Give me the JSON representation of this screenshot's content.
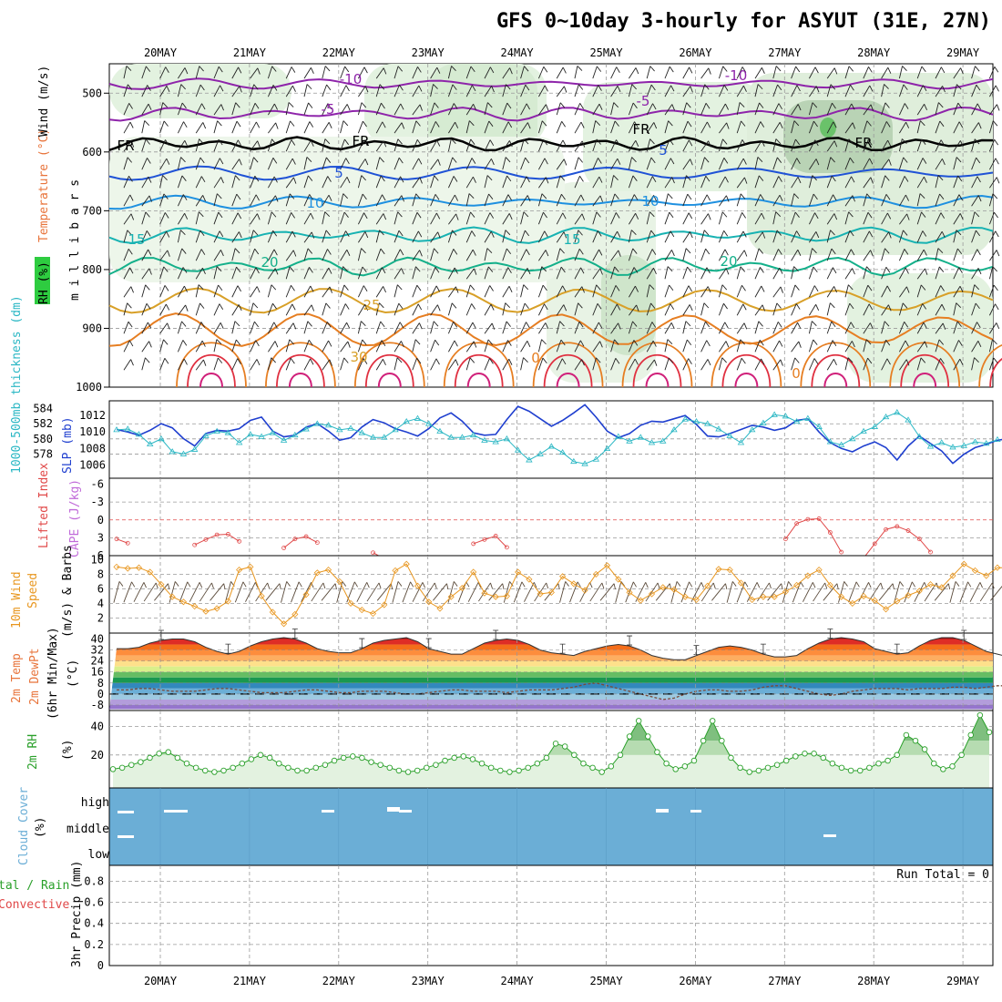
{
  "title": "GFS 0~10day 3-hourly for ASYUT (31E, 27N)",
  "dates": [
    "20MAY",
    "21MAY",
    "22MAY",
    "23MAY",
    "24MAY",
    "25MAY",
    "26MAY",
    "27MAY",
    "28MAY",
    "29MAY"
  ],
  "colors": {
    "wind_label": "#000000",
    "temperature_label": "#e8743b",
    "rh_box": "#2ecc40",
    "slp": "#1f3fcf",
    "thickness": "#2ab7c4",
    "lifted": "#e04848",
    "cape": "#c06ad9",
    "wind10": "#e8961e",
    "speed": "#e8961e",
    "rh2m": "#2aa02a",
    "cloud": "#6baed6",
    "precip_total": "#2aa02a",
    "precip_conv": "#e04848"
  },
  "panels": {
    "upper": {
      "ylabels": [
        "Wind (m/s)",
        "Temperature (°C)",
        "RH (%)",
        "m i l l i b a r s"
      ],
      "yticks": [
        "500",
        "600",
        "700",
        "800",
        "900",
        "1000"
      ]
    },
    "slp": {
      "ylabel_thick": "1000-500mb thickness (dm)",
      "ylabel_slp": "SLP (mb)",
      "left_ticks": [
        "584",
        "582",
        "580",
        "578"
      ],
      "right_ticks": [
        "1012",
        "1010",
        "1008",
        "1006"
      ]
    },
    "li": {
      "ylabel_li": "Lifted Index",
      "ylabel_cape": "CAPE (J/kg)",
      "yticks": [
        "-6",
        "-3",
        "0",
        "3",
        "6"
      ]
    },
    "wind10": {
      "ylabel": "10m Wind",
      "ylabel2": "Speed",
      "ylabel3": "(m/s) & Barbs",
      "yticks": [
        "10",
        "8",
        "6",
        "4",
        "2"
      ]
    },
    "temp2m": {
      "ylabel1": "2m Temp",
      "ylabel2": "2m DewPt",
      "ylabel3": "(6hr Min/Max)",
      "unit": "(°C)",
      "yticks": [
        "40",
        "32",
        "24",
        "16",
        "8",
        "0",
        "-8"
      ]
    },
    "rh2m": {
      "ylabel": "2m RH",
      "unit": "(%)",
      "yticks": [
        "40",
        "20"
      ]
    },
    "cloud": {
      "ylabel": "Cloud Cover",
      "unit": "(%)",
      "levels": [
        "high",
        "middle",
        "low"
      ]
    },
    "precip": {
      "ylabel1": "tal / Rain",
      "ylabel2": "Convective",
      "ylabel3": "3hr Precip (mm)",
      "yticks": [
        "0.8",
        "0.6",
        "0.4",
        "0.2",
        "0"
      ],
      "run_total": "Run Total = 0"
    }
  },
  "isotherm_labels": [
    "-10",
    "-5",
    "FR",
    "5",
    "10",
    "15",
    "20",
    "25",
    "30",
    "0"
  ],
  "chart_data": [
    {
      "type": "line",
      "name": "slp_thickness",
      "x_unit": "3-hourly steps from 19 May 12Z",
      "series": [
        {
          "name": "SLP (mb)",
          "values": [
            1010.3,
            1010.0,
            1009.6,
            1010.2,
            1011.0,
            1010.5,
            1009.2,
            1008.3,
            1009.8,
            1010.2,
            1010.1,
            1010.4,
            1011.4,
            1011.8,
            1010.1,
            1009.4,
            1009.6,
            1010.6,
            1011.0,
            1010.1,
            1009.0,
            1009.3,
            1010.6,
            1011.5,
            1011.1,
            1010.4,
            1010.0,
            1009.5,
            1010.4,
            1011.7,
            1012.3,
            1011.3,
            1009.9,
            1009.6,
            1009.7,
            1011.5,
            1013.1,
            1012.5,
            1011.6,
            1010.7,
            1011.4,
            1012.3,
            1013.3,
            1011.8,
            1010.1,
            1009.3,
            1009.8,
            1010.8,
            1011.3,
            1011.2,
            1011.6,
            1012.0,
            1010.9,
            1009.5,
            1009.4,
            1009.8,
            1010.3,
            1010.8,
            1010.6,
            1010.2,
            1010.5,
            1011.4,
            1011.6,
            1010.0,
            1008.7,
            1008.0,
            1007.6,
            1008.3,
            1008.8,
            1008.1,
            1006.6,
            1008.3,
            1009.5,
            1008.6,
            1007.7,
            1006.2,
            1007.3,
            1008.1,
            1008.5,
            1009.0,
            1009.2
          ]
        },
        {
          "name": "Thickness (dm)",
          "values": [
            581.2,
            581.3,
            580.6,
            579.3,
            580.0,
            578.3,
            578.0,
            578.6,
            580.4,
            581.0,
            580.8,
            579.5,
            580.6,
            580.3,
            580.8,
            579.8,
            580.5,
            581.3,
            582.0,
            581.8,
            581.2,
            581.4,
            580.8,
            580.2,
            580.2,
            581.2,
            582.3,
            582.7,
            582.0,
            581.0,
            580.2,
            580.2,
            580.5,
            579.8,
            579.6,
            580.0,
            578.5,
            577.2,
            578.0,
            579.0,
            578.2,
            577.0,
            576.7,
            577.3,
            578.7,
            580.3,
            579.7,
            580.2,
            579.5,
            579.7,
            581.2,
            582.6,
            582.3,
            582.0,
            581.3,
            580.4,
            579.5,
            581.2,
            582.1,
            583.2,
            583.0,
            582.3,
            582.7,
            581.6,
            579.6,
            579.2,
            580.0,
            581.0,
            581.6,
            582.9,
            583.5,
            582.5,
            580.3,
            579.0,
            579.5,
            578.9,
            579.1,
            579.6,
            579.4,
            579.9
          ]
        }
      ]
    },
    {
      "type": "line",
      "name": "lifted_index",
      "series": [
        {
          "name": "Lifted Index",
          "values": [
            3.2,
            3.9,
            7,
            7,
            7,
            7,
            7,
            4.2,
            3.3,
            2.5,
            2.4,
            3.6,
            7,
            7,
            7,
            4.7,
            3.2,
            2.8,
            3.8,
            7,
            7,
            7,
            7,
            5.5,
            6.5,
            7,
            7,
            7,
            7,
            7,
            7,
            7,
            4.0,
            3.3,
            2.7,
            4.6,
            7,
            7,
            7,
            7,
            7,
            7,
            7,
            7,
            7,
            7,
            7,
            7,
            7,
            7,
            7,
            7,
            7,
            7,
            7,
            7,
            7,
            7,
            7,
            7,
            3.2,
            0.6,
            -0.1,
            -0.2,
            2.1,
            5.4,
            7,
            6.4,
            4.0,
            1.6,
            1.1,
            1.8,
            3.2,
            5.4,
            7,
            7,
            7,
            7,
            7,
            7,
            7
          ]
        }
      ]
    },
    {
      "type": "line",
      "name": "wind10m",
      "series": [
        {
          "name": "10m Wind Speed (m/s)",
          "values": [
            9.0,
            8.8,
            8.9,
            8.3,
            6.6,
            4.9,
            4.2,
            3.6,
            2.9,
            3.3,
            4.3,
            8.6,
            9.0,
            5.0,
            2.8,
            1.2,
            2.5,
            5.2,
            8.2,
            8.6,
            7.0,
            4.0,
            3.1,
            2.6,
            3.8,
            8.5,
            9.4,
            6.4,
            4.2,
            3.3,
            4.9,
            6.1,
            8.3,
            5.4,
            4.9,
            5.0,
            8.3,
            7.3,
            5.3,
            5.5,
            7.7,
            6.7,
            5.8,
            8.0,
            9.2,
            7.3,
            5.5,
            4.4,
            5.3,
            6.2,
            5.9,
            4.9,
            4.5,
            6.4,
            8.7,
            8.6,
            6.8,
            4.5,
            4.9,
            4.9,
            5.6,
            6.5,
            7.8,
            8.6,
            6.5,
            4.9,
            4.0,
            5.0,
            4.4,
            3.2,
            4.3,
            5.1,
            5.7,
            6.6,
            6.2,
            7.8,
            9.4,
            8.5,
            7.8,
            8.9,
            8.9
          ]
        }
      ]
    },
    {
      "type": "area",
      "name": "temp2m",
      "series": [
        {
          "name": "2m Temp (°C)",
          "values": [
            33,
            33,
            34,
            37,
            39,
            40,
            40,
            38,
            34,
            31,
            29,
            31,
            35,
            38,
            40,
            41,
            40,
            37,
            33,
            31,
            30,
            30,
            33,
            37,
            39,
            40,
            41,
            38,
            33,
            31,
            29,
            29,
            33,
            37,
            39,
            40,
            39,
            36,
            32,
            30,
            29,
            28,
            31,
            33,
            35,
            36,
            35,
            32,
            28,
            26,
            25,
            25,
            28,
            31,
            34,
            35,
            34,
            32,
            29,
            27,
            27,
            28,
            33,
            37,
            40,
            41,
            40,
            38,
            33,
            31,
            29,
            30,
            35,
            39,
            41,
            41,
            39,
            35,
            31,
            29,
            27
          ]
        },
        {
          "name": "2m DewPt (°C)",
          "values": [
            3,
            3,
            4,
            4,
            3,
            2,
            2,
            2,
            3,
            4,
            4,
            3,
            2,
            1,
            1,
            1,
            2,
            3,
            3,
            2,
            1,
            1,
            2,
            2,
            2,
            1,
            0,
            0,
            1,
            2,
            3,
            3,
            2,
            2,
            2,
            1,
            2,
            3,
            3,
            3,
            4,
            5,
            7,
            8,
            6,
            4,
            2,
            0,
            -2,
            -4,
            -3,
            0,
            2,
            3,
            3,
            2,
            2,
            3,
            5,
            6,
            6,
            4,
            2,
            0,
            -1,
            0,
            2,
            3,
            4,
            4,
            4,
            3,
            4,
            4,
            4,
            5,
            5,
            4,
            5,
            6,
            6
          ]
        }
      ]
    },
    {
      "type": "line",
      "name": "rh2m",
      "series": [
        {
          "name": "2m RH (%)",
          "values": [
            10,
            11,
            13,
            15,
            18,
            21,
            22,
            18,
            14,
            11,
            9,
            8,
            9,
            11,
            14,
            17,
            20,
            18,
            14,
            11,
            9,
            9,
            11,
            13,
            16,
            18,
            19,
            18,
            15,
            13,
            11,
            9,
            8,
            9,
            11,
            13,
            16,
            18,
            19,
            17,
            14,
            11,
            9,
            8,
            9,
            11,
            14,
            18,
            28,
            26,
            20,
            14,
            11,
            8,
            12,
            20,
            33,
            44,
            33,
            22,
            14,
            10,
            12,
            16,
            30,
            44,
            30,
            18,
            11,
            8,
            9,
            11,
            13,
            16,
            19,
            21,
            21,
            18,
            14,
            11,
            9,
            9,
            11,
            14,
            16,
            20,
            34,
            30,
            24,
            14,
            10,
            12,
            20,
            34,
            48,
            36
          ]
        }
      ]
    },
    {
      "type": "table",
      "name": "precip",
      "series": [
        {
          "name": "3hr Precip (mm)",
          "values": [
            0
          ]
        }
      ],
      "ylim": [
        0,
        0.9
      ]
    }
  ]
}
